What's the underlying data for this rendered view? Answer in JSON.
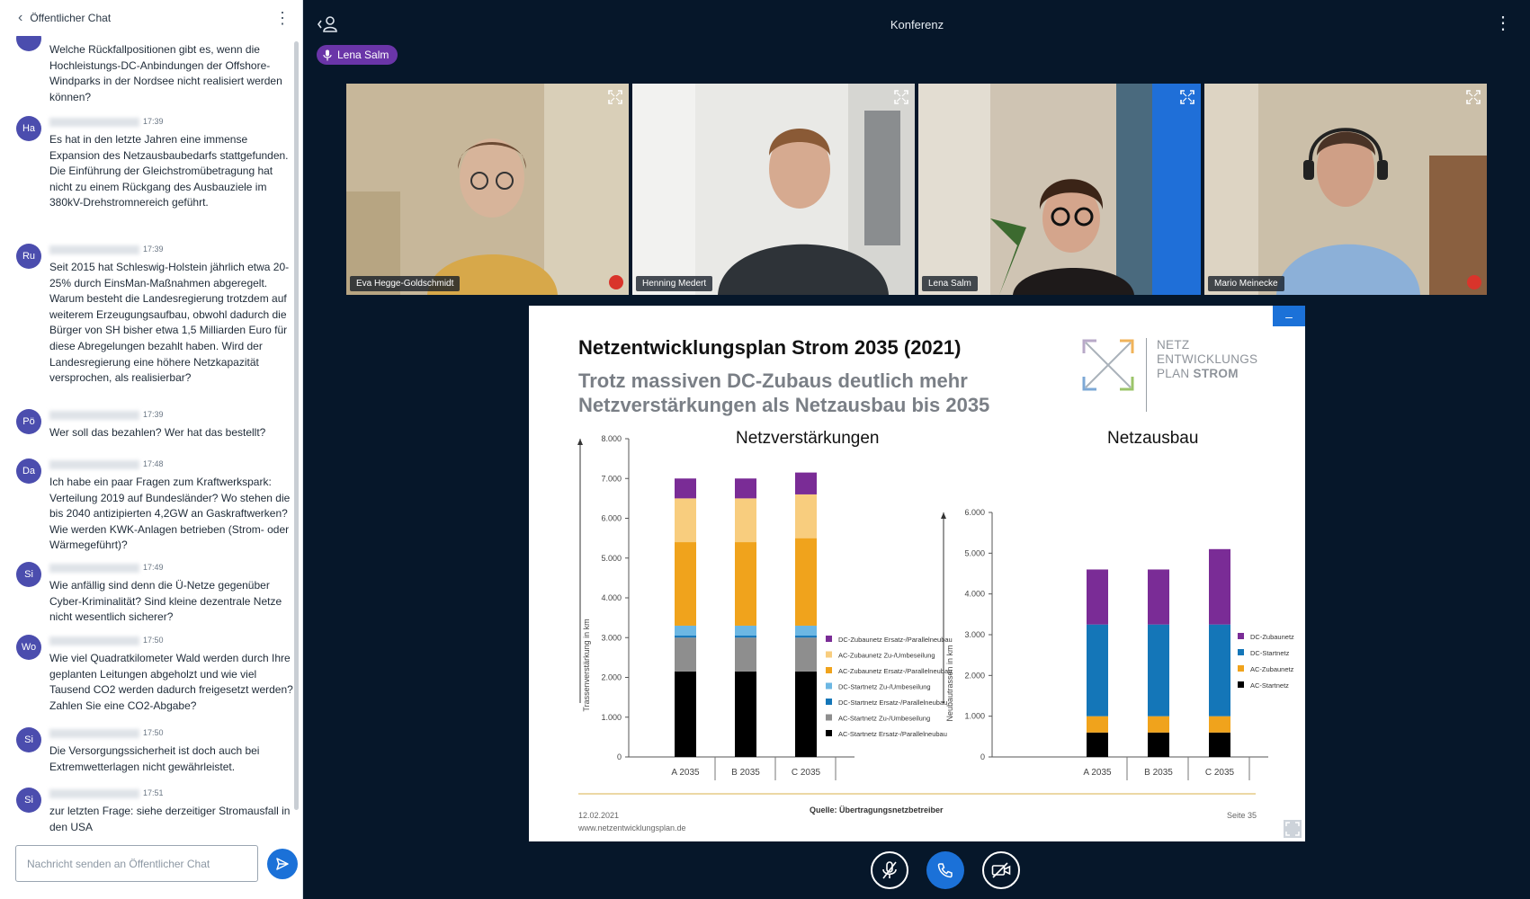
{
  "chat": {
    "title": "Öffentlicher Chat",
    "input_placeholder": "Nachricht senden an Öffentlicher Chat",
    "messages": [
      {
        "initials": "",
        "time": "",
        "text": "Welche Rückfallpositionen gibt es, wenn die Hochleistungs-DC-Anbindungen der Offshore-Windparks in der Nordsee nicht realisiert werden können?"
      },
      {
        "initials": "Ha",
        "time": "17:39",
        "text": "Es hat in den letzte Jahren eine immense Expansion des Netzausbaubedarfs stattgefunden. Die Einführung der Gleichstromübetragung hat nicht zu einem Rückgang des Ausbauziele im 380kV-Drehstromnereich geführt."
      },
      {
        "initials": "Ru",
        "time": "17:39",
        "text": "Seit 2015 hat Schleswig-Holstein jährlich etwa 20-25% durch EinsMan-Maßnahmen abgeregelt. Warum besteht die Landesregierung trotzdem auf weiterem Erzeugungsaufbau, obwohl dadurch die Bürger von SH bisher etwa 1,5 Milliarden Euro für diese Abregelungen bezahlt haben. Wird der Landesregierung eine höhere Netzkapazität versprochen, als realisierbar?"
      },
      {
        "initials": "Pö",
        "time": "17:39",
        "text": "Wer soll das bezahlen? Wer hat das bestellt?"
      },
      {
        "initials": "Da",
        "time": "17:48",
        "text": "Ich habe ein paar Fragen zum Kraftwerkspark: Verteilung 2019 auf Bundesländer? Wo stehen die bis 2040 antizipierten 4,2GW an Gaskraftwerken? Wie werden KWK-Anlagen betrieben (Strom- oder Wärmegeführt)?"
      },
      {
        "initials": "Si",
        "time": "17:49",
        "text": "Wie anfällig sind denn die Ü-Netze gegenüber Cyber-Kriminalität? Sind kleine dezentrale Netze nicht wesentlich sicherer?"
      },
      {
        "initials": "Wo",
        "time": "17:50",
        "text": "Wie viel Quadratkilometer Wald werden durch Ihre geplanten Leitungen abgeholzt und wie viel Tausend CO2 werden dadurch freigesetzt werden? Zahlen Sie eine CO2-Abgabe?"
      },
      {
        "initials": "Si",
        "time": "17:50",
        "text": "Die Versorgungssicherheit ist doch auch bei Extremwetterlagen nicht gewährleistet."
      },
      {
        "initials": "Si",
        "time": "17:51",
        "text": "zur letzten Frage: siehe derzeitiger Stromausfall in den USA"
      }
    ]
  },
  "conference": {
    "title": "Konferenz",
    "talker": "Lena Salm",
    "participants": [
      {
        "name": "Eva Hegge-Goldschmidt",
        "muted": true
      },
      {
        "name": "Henning Medert",
        "muted": false
      },
      {
        "name": "Lena Salm",
        "muted": false,
        "active": true
      },
      {
        "name": "Mario Meinecke",
        "muted": true
      }
    ]
  },
  "slide": {
    "title": "Netzentwicklungsplan Strom 2035 (2021)",
    "subtitle": "Trotz massiven DC-Zubaus deutlich mehr Netzverstärkungen als Netzausbau bis 2035",
    "logo": {
      "line1": "NETZ",
      "line2": "ENTWICKLUNGS",
      "line3a": "PLAN ",
      "line3b": "STROM"
    },
    "footer_date": "12.02.2021",
    "footer_source": "Quelle: Übertragungsnetzbetreiber",
    "footer_page": "Seite 35",
    "footer_url": "www.netzentwicklungsplan.de"
  },
  "chart_data": [
    {
      "type": "bar",
      "stacked": true,
      "title": "Netzverstärkungen",
      "ylabel": "Trassenverstärkung in km",
      "ylim": [
        0,
        8000
      ],
      "yticks": [
        "0",
        "1.000",
        "2.000",
        "3.000",
        "4.000",
        "5.000",
        "6.000",
        "7.000",
        "8.000"
      ],
      "categories": [
        "A 2035",
        "B 2035",
        "C 2035"
      ],
      "series": [
        {
          "name": "AC-Startnetz Ersatz-/Parallelneubau",
          "color": "#000000",
          "values": [
            2150,
            2150,
            2150
          ]
        },
        {
          "name": "AC-Startnetz Zu-/Umbeseilung",
          "color": "#8e8e8e",
          "values": [
            850,
            850,
            850
          ]
        },
        {
          "name": "DC-Startnetz Ersatz-/Parallelneubau",
          "color": "#1476b8",
          "values": [
            50,
            50,
            50
          ]
        },
        {
          "name": "DC-Startnetz Zu-/Umbeseilung",
          "color": "#6cb7e3",
          "values": [
            250,
            250,
            250
          ]
        },
        {
          "name": "AC-Zubaunetz Ersatz-/Parallelneubau",
          "color": "#f0a31c",
          "values": [
            2100,
            2100,
            2200
          ]
        },
        {
          "name": "AC-Zubaunetz Zu-/Umbeseilung",
          "color": "#f8cd7e",
          "values": [
            1100,
            1100,
            1100
          ]
        },
        {
          "name": "DC-Zubaunetz Ersatz-/Parallelneubau",
          "color": "#7a2c96",
          "values": [
            500,
            500,
            550
          ]
        }
      ]
    },
    {
      "type": "bar",
      "stacked": true,
      "title": "Netzausbau",
      "ylabel": "Neubautrassen in km",
      "ylim": [
        0,
        6000
      ],
      "yticks": [
        "0",
        "1.000",
        "2.000",
        "3.000",
        "4.000",
        "5.000",
        "6.000"
      ],
      "categories": [
        "A 2035",
        "B 2035",
        "C 2035"
      ],
      "series": [
        {
          "name": "AC-Startnetz",
          "color": "#000000",
          "values": [
            600,
            600,
            600
          ]
        },
        {
          "name": "AC-Zubaunetz",
          "color": "#f0a31c",
          "values": [
            400,
            400,
            400
          ]
        },
        {
          "name": "DC-Startnetz",
          "color": "#1476b8",
          "values": [
            2250,
            2250,
            2250
          ]
        },
        {
          "name": "DC-Zubaunetz",
          "color": "#7a2c96",
          "values": [
            1350,
            1350,
            1850
          ]
        }
      ]
    }
  ]
}
